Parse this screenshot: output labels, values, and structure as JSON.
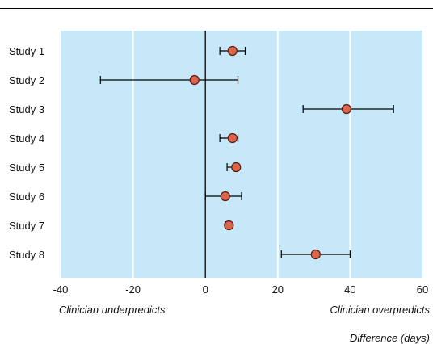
{
  "chart_data": {
    "type": "forest",
    "categories": [
      "Study 1",
      "Study 2",
      "Study 3",
      "Study 4",
      "Study 5",
      "Study 6",
      "Study 7",
      "Study 8"
    ],
    "estimates": [
      7.5,
      -3,
      39,
      7.5,
      8.5,
      5.5,
      6.5,
      30.5
    ],
    "lower": [
      4,
      -29,
      27,
      4,
      6,
      0,
      5.5,
      21
    ],
    "upper": [
      11,
      9,
      52,
      9,
      8.5,
      10,
      7,
      40
    ],
    "xlim": [
      -40,
      60
    ],
    "xticks": [
      -40,
      -20,
      0,
      20,
      40,
      60
    ],
    "xlabel": "Difference (days)",
    "left_annotation": "Clinician underpredicts",
    "right_annotation": "Clinician overpredicts",
    "grid": true,
    "colors": {
      "plot_background": "#c6e8f8",
      "gridline": "#ffffff",
      "point_fill": "#d9654b",
      "point_stroke": "#5a1a10",
      "line": "#000000"
    }
  }
}
